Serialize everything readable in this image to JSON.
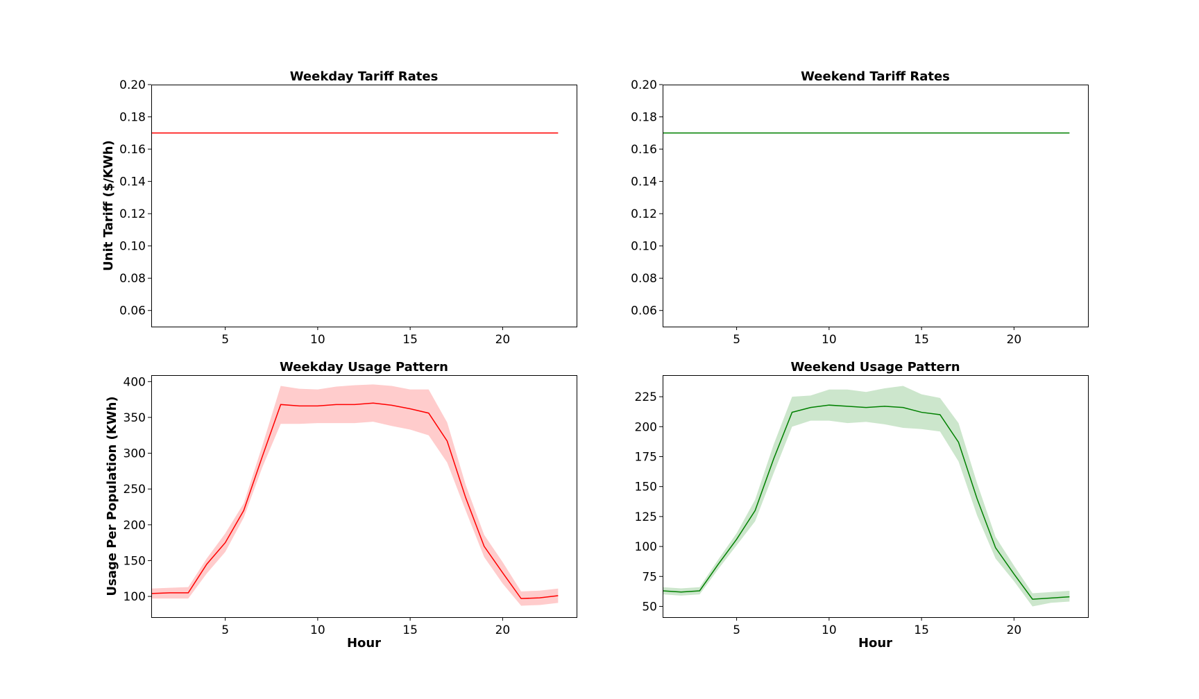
{
  "chart_data": [
    {
      "id": "weekday-tariff",
      "type": "line",
      "title": "Weekday Tariff Rates",
      "xlabel": "",
      "ylabel": "Unit Tariff ($/KWh)",
      "xlim": [
        1,
        24
      ],
      "ylim": [
        0.05,
        0.2
      ],
      "xticks": [
        5,
        10,
        15,
        20
      ],
      "yticks": [
        0.06,
        0.08,
        0.1,
        0.12,
        0.14,
        0.16,
        0.18,
        0.2
      ],
      "ydecimals": 2,
      "grid": false,
      "color": "#ff0000",
      "band_color": "#ffcccc",
      "x": [
        1,
        23
      ],
      "y": [
        0.17,
        0.17
      ]
    },
    {
      "id": "weekend-tariff",
      "type": "line",
      "title": "Weekend Tariff Rates",
      "xlabel": "",
      "ylabel": "",
      "xlim": [
        1,
        24
      ],
      "ylim": [
        0.05,
        0.2
      ],
      "xticks": [
        5,
        10,
        15,
        20
      ],
      "yticks": [
        0.06,
        0.08,
        0.1,
        0.12,
        0.14,
        0.16,
        0.18,
        0.2
      ],
      "ydecimals": 2,
      "grid": false,
      "color": "#008000",
      "band_color": "#cce6cc",
      "x": [
        1,
        23
      ],
      "y": [
        0.17,
        0.17
      ]
    },
    {
      "id": "weekday-usage",
      "type": "line",
      "title": "Weekday Usage Pattern",
      "xlabel": "Hour",
      "ylabel": "Usage Per Population (KWh)",
      "xlim": [
        1,
        24
      ],
      "ylim": [
        71,
        409
      ],
      "xticks": [
        5,
        10,
        15,
        20
      ],
      "yticks": [
        100,
        150,
        200,
        250,
        300,
        350,
        400
      ],
      "ydecimals": 0,
      "grid": false,
      "color": "#ff0000",
      "band_color": "#ffcccc",
      "x": [
        1,
        2,
        3,
        4,
        5,
        6,
        7,
        8,
        9,
        10,
        11,
        12,
        13,
        14,
        15,
        16,
        17,
        18,
        19,
        20,
        21,
        22,
        23
      ],
      "y": [
        104,
        105,
        105,
        145,
        175,
        220,
        295,
        368,
        366,
        366,
        368,
        368,
        370,
        367,
        362,
        356,
        317,
        238,
        170,
        133,
        97,
        98,
        101
      ],
      "lower": [
        97,
        97,
        97,
        132,
        162,
        210,
        280,
        341,
        341,
        342,
        342,
        342,
        344,
        338,
        333,
        325,
        287,
        220,
        155,
        118,
        87,
        88,
        91
      ],
      "upper": [
        111,
        112,
        113,
        153,
        188,
        230,
        310,
        394,
        390,
        389,
        393,
        395,
        396,
        394,
        389,
        389,
        343,
        256,
        186,
        148,
        107,
        108,
        111
      ]
    },
    {
      "id": "weekend-usage",
      "type": "line",
      "title": "Weekend Usage Pattern",
      "xlabel": "Hour",
      "ylabel": "",
      "xlim": [
        1,
        24
      ],
      "ylim": [
        41,
        243
      ],
      "xticks": [
        5,
        10,
        15,
        20
      ],
      "yticks": [
        50,
        75,
        100,
        125,
        150,
        175,
        200,
        225
      ],
      "ydecimals": 0,
      "grid": false,
      "color": "#008000",
      "band_color": "#cce6cc",
      "x": [
        1,
        2,
        3,
        4,
        5,
        6,
        7,
        8,
        9,
        10,
        11,
        12,
        13,
        14,
        15,
        16,
        17,
        18,
        19,
        20,
        21,
        22,
        23
      ],
      "y": [
        63,
        62,
        63,
        85,
        106,
        130,
        173,
        212,
        216,
        218,
        217,
        216,
        217,
        216,
        212,
        210,
        187,
        140,
        99,
        77,
        56,
        57,
        58
      ],
      "lower": [
        60,
        59,
        60,
        81,
        101,
        121,
        161,
        200,
        205,
        205,
        203,
        204,
        202,
        199,
        198,
        196,
        171,
        126,
        90,
        71,
        50,
        53,
        54
      ],
      "upper": [
        66,
        65,
        66,
        89,
        111,
        139,
        185,
        225,
        226,
        231,
        231,
        229,
        232,
        234,
        227,
        224,
        203,
        153,
        108,
        84,
        61,
        62,
        63
      ]
    }
  ]
}
